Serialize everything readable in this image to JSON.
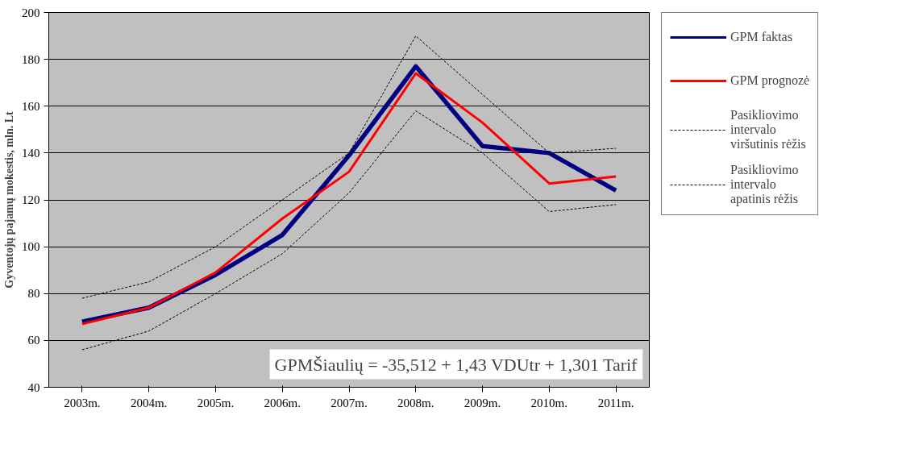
{
  "chart_data": {
    "type": "line",
    "ylabel": "Gyventojų pajamų mokestis, mln. Lt",
    "categories": [
      "2003m.",
      "2004m.",
      "2005m.",
      "2006m.",
      "2007m.",
      "2008m.",
      "2009m.",
      "2010m.",
      "2011m."
    ],
    "series": [
      {
        "name": "GPM faktas",
        "color": "#000080",
        "values": [
          68,
          74,
          88,
          105,
          139,
          177,
          143,
          140,
          124
        ]
      },
      {
        "name": "GPM prognozė",
        "color": "#ff0000",
        "values": [
          67,
          74,
          89,
          112,
          132,
          174,
          153,
          127,
          130
        ]
      },
      {
        "name": "Pasikliovimo intervalo viršutinis rėžis",
        "color": "#000000",
        "line_style": "dashed",
        "values": [
          78,
          85,
          100,
          120,
          140,
          190,
          165,
          140,
          142
        ]
      },
      {
        "name": "Pasikliovimo intervalo apatinis rėžis",
        "color": "#000000",
        "line_style": "dashed",
        "values": [
          56,
          64,
          80,
          97,
          123,
          158,
          140,
          115,
          118
        ]
      }
    ],
    "ylim": [
      40,
      200
    ],
    "yticks": [
      40,
      60,
      80,
      100,
      120,
      140,
      160,
      180,
      200
    ],
    "grid": "y",
    "legend": "right",
    "line_style": "solid",
    "annotations": [
      "GPMŠiaulių = -35,512 + 1,43 VDUtr + 1,301 Tarif"
    ]
  }
}
